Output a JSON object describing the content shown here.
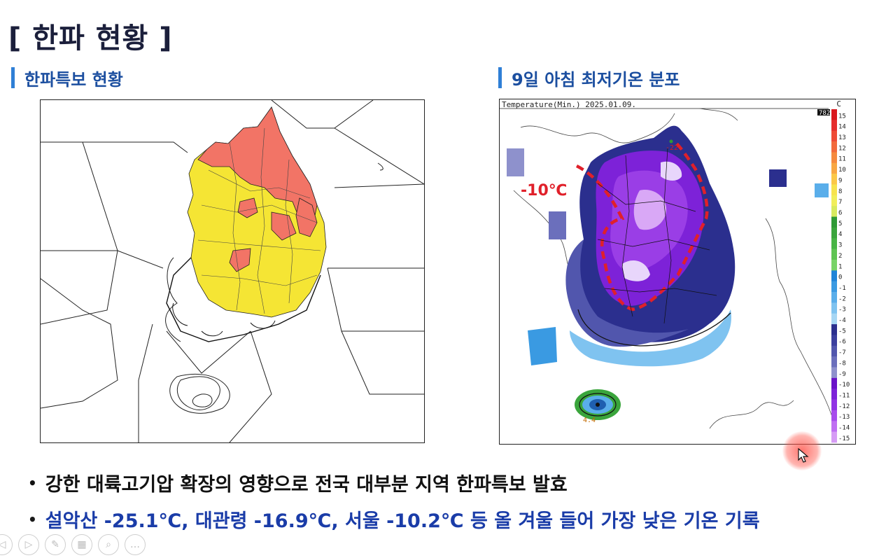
{
  "slide": {
    "title": "[ 한파 현황 ]",
    "left_section_title": "한파특보 현황",
    "right_section_title": "9일 아침 최저기온 분포"
  },
  "temp_map": {
    "header": "Temperature(Min.)  2025.01.09.",
    "unit": "C",
    "badge": "782",
    "label_minus10": "-10℃",
    "station_label": "4.4",
    "top_label": "-22",
    "scale": [
      "15",
      "14",
      "13",
      "12",
      "11",
      "10",
      "9",
      "8",
      "7",
      "6",
      "5",
      "4",
      "3",
      "2",
      "1",
      "0",
      "-1",
      "-2",
      "-3",
      "-4",
      "-5",
      "-6",
      "-7",
      "-8",
      "-9",
      "-10",
      "-11",
      "-12",
      "-13",
      "-14",
      "-15"
    ],
    "scale_colors": [
      "#d9181e",
      "#e52d2d",
      "#ee4b36",
      "#f26a3c",
      "#f58a3e",
      "#f8a742",
      "#fbc847",
      "#f7e34e",
      "#f1ee5b",
      "#d8ea5f",
      "#2e9a35",
      "#3aa53c",
      "#48b445",
      "#5fc453",
      "#78d368",
      "#1f84d8",
      "#3a9ae2",
      "#5aaeea",
      "#7fc3f0",
      "#a6d6f4",
      "#2b2f8e",
      "#3b3f9e",
      "#5156ad",
      "#6b6fbc",
      "#8e91cc",
      "#6a12c8",
      "#7d22d8",
      "#9133e4",
      "#a74cec",
      "#bf6ff2",
      "#d69cf5"
    ]
  },
  "bullets": [
    "강한 대륙고기압 확장의 영향으로 전국 대부분 지역 한파특보 발효",
    "설악산 -25.1℃, 대관령 -16.9℃, 서울 -10.2℃ 등 올 겨울 들어 가장 낮은 기온 기록"
  ],
  "toolbar_icons": [
    "prev-icon",
    "play-icon",
    "pen-icon",
    "slides-icon",
    "zoom-icon",
    "more-icon"
  ]
}
